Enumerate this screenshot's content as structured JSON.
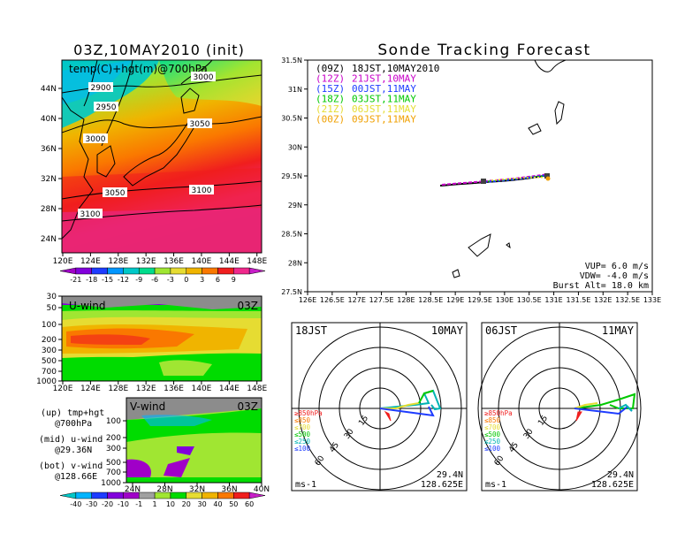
{
  "title_left": "03Z,10MAY2010 (init)",
  "title_right": "Sonde Tracking Forecast",
  "upper_panel": {
    "label": "temp(C)+hgt(m)@700hPa",
    "x_ticks": [
      "120E",
      "124E",
      "128E",
      "132E",
      "136E",
      "140E",
      "144E",
      "148E"
    ],
    "y_ticks": [
      "44N",
      "40N",
      "36N",
      "32N",
      "28N",
      "24N"
    ],
    "contour_labels": [
      "2900",
      "2950",
      "3000",
      "3000",
      "3050",
      "3050",
      "3100",
      "3100"
    ]
  },
  "temp_colorbar": {
    "labels": [
      "-21",
      "-18",
      "-15",
      "-12",
      "-9",
      "-6",
      "-3",
      "0",
      "3",
      "6",
      "9"
    ],
    "colors": [
      "#a000c8",
      "#8200dc",
      "#1e3cff",
      "#0096ff",
      "#00c8c8",
      "#00dc8c",
      "#a0e632",
      "#e6dc32",
      "#f0b400",
      "#fa7800",
      "#f01e1e",
      "#f0288c",
      "#c81ec8"
    ]
  },
  "u_panel": {
    "label": "U-wind",
    "time": "03Z",
    "y_ticks": [
      "30",
      "50",
      "100",
      "200",
      "300",
      "500",
      "700",
      "1000"
    ],
    "x_ticks": [
      "120E",
      "124E",
      "128E",
      "132E",
      "136E",
      "140E",
      "144E",
      "148E"
    ]
  },
  "v_panel": {
    "label": "V-wind",
    "time": "03Z",
    "y_ticks": [
      "100",
      "200",
      "300",
      "500",
      "700",
      "1000"
    ],
    "x_ticks": [
      "24N",
      "28N",
      "32N",
      "36N",
      "40N"
    ]
  },
  "legend_left": {
    "up": "(up) tmp+hgt",
    "up2": "@700hPa",
    "mid": "(mid) u-wind",
    "mid2": "@29.36N",
    "bot": "(bot) v-wind",
    "bot2": "@128.66E"
  },
  "wind_colorbar": {
    "labels": [
      "-40",
      "-30",
      "-20",
      "-10",
      "-1",
      "1",
      "10",
      "20",
      "30",
      "40",
      "50",
      "60"
    ],
    "colors": [
      "#00c8c8",
      "#00b4ff",
      "#1e3cff",
      "#8200dc",
      "#a000c8",
      "#a0a0a0",
      "#a0e632",
      "#00dc00",
      "#e6dc32",
      "#f0b400",
      "#fa7800",
      "#f01e1e",
      "#c81ec8"
    ]
  },
  "track_map": {
    "x_ticks": [
      "126E",
      "126.5E",
      "127E",
      "127.5E",
      "128E",
      "128.5E",
      "129E",
      "129.5E",
      "130E",
      "130.5E",
      "131E",
      "131.5E",
      "132E",
      "132.5E",
      "133E"
    ],
    "y_ticks": [
      "31.5N",
      "31N",
      "30.5N",
      "30N",
      "29.5N",
      "29N",
      "28.5N",
      "28N",
      "27.5N"
    ],
    "legend": [
      {
        "tag": "(09Z)",
        "text": "18JST,10MAY2010",
        "color": "#000000"
      },
      {
        "tag": "(12Z)",
        "text": "21JST,10MAY",
        "color": "#c800c8"
      },
      {
        "tag": "(15Z)",
        "text": "00JST,11MAY",
        "color": "#1e3cff"
      },
      {
        "tag": "(18Z)",
        "text": "03JST,11MAY",
        "color": "#00c800"
      },
      {
        "tag": "(21Z)",
        "text": "06JST,11MAY",
        "color": "#e6dc32"
      },
      {
        "tag": "(00Z)",
        "text": "09JST,11MAY",
        "color": "#f0a000"
      }
    ],
    "vup": "VUP= 6.0 m/s",
    "vdw": "VDW= -4.0 m/s",
    "burst": "Burst Alt= 18.0 km"
  },
  "polar_left": {
    "time": "18JST",
    "date": "10MAY",
    "lat": "29.4N",
    "lon": "128.625E",
    "unit": "ms-1",
    "ring_labels": [
      "15",
      "30",
      "45",
      "60"
    ]
  },
  "polar_right": {
    "time": "06JST",
    "date": "11MAY",
    "lat": "29.4N",
    "lon": "128.625E",
    "unit": "ms-1",
    "ring_labels": [
      "15",
      "30",
      "45",
      "60"
    ]
  },
  "pressure_legend": [
    {
      "text": "≥850hPa",
      "color": "#f01e1e"
    },
    {
      "text": "≤850",
      "color": "#fa7800"
    },
    {
      "text": "≤700",
      "color": "#e6dc32"
    },
    {
      "text": "≤500",
      "color": "#00c800"
    },
    {
      "text": "≤250",
      "color": "#00b4b4"
    },
    {
      "text": "≤100",
      "color": "#1e3cff"
    }
  ]
}
